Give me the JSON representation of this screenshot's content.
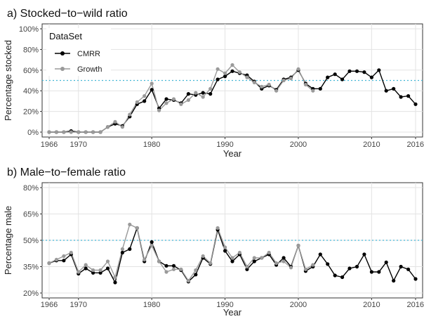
{
  "chart_data": [
    {
      "type": "line",
      "title": "a) Stocked−to−wild ratio",
      "xlabel": "Year",
      "ylabel": "Percentage stocked",
      "xlim": [
        1966,
        2016
      ],
      "ylim": [
        0,
        100
      ],
      "x_ticks": [
        "1966",
        "1970",
        "1980",
        "1990",
        "2000",
        "2010",
        "2016"
      ],
      "y_ticks": [
        "0%",
        "20%",
        "40%",
        "60%",
        "80%",
        "100%"
      ],
      "reference_line": 50,
      "grid": true,
      "legend": {
        "title": "DataSet",
        "position": "top-left",
        "entries": [
          "CMRR",
          "Growth"
        ]
      },
      "series": [
        {
          "name": "CMRR",
          "color": "#000000",
          "points": [
            [
              1966,
              0
            ],
            [
              1967,
              0
            ],
            [
              1968,
              0
            ],
            [
              1969,
              1
            ],
            [
              1970,
              0
            ],
            [
              1971,
              0
            ],
            [
              1972,
              0
            ],
            [
              1973,
              0
            ],
            [
              1974,
              5
            ],
            [
              1975,
              8
            ],
            [
              1976,
              6
            ],
            [
              1977,
              15
            ],
            [
              1978,
              27
            ],
            [
              1979,
              30
            ],
            [
              1980,
              41
            ],
            [
              1981,
              23
            ],
            [
              1982,
              32
            ],
            [
              1983,
              31
            ],
            [
              1984,
              28
            ],
            [
              1985,
              37
            ],
            [
              1986,
              36
            ],
            [
              1987,
              38
            ],
            [
              1988,
              37
            ],
            [
              1989,
              51
            ],
            [
              1990,
              54
            ],
            [
              1991,
              59
            ],
            [
              1992,
              57
            ],
            [
              1993,
              55
            ],
            [
              1994,
              49
            ],
            [
              1995,
              42
            ],
            [
              1996,
              45
            ],
            [
              1997,
              41
            ],
            [
              1998,
              51
            ],
            [
              1999,
              53
            ],
            [
              2000,
              60
            ],
            [
              2001,
              47
            ],
            [
              2002,
              42
            ],
            [
              2003,
              42
            ],
            [
              2004,
              53
            ],
            [
              2005,
              56
            ],
            [
              2006,
              51
            ],
            [
              2007,
              59
            ],
            [
              2008,
              59
            ],
            [
              2009,
              58
            ],
            [
              2010,
              53
            ],
            [
              2011,
              60
            ],
            [
              2012,
              40
            ],
            [
              2013,
              42
            ],
            [
              2014,
              34
            ],
            [
              2015,
              35
            ],
            [
              2016,
              27
            ]
          ]
        },
        {
          "name": "Growth",
          "color": "#9a9a9a",
          "points": [
            [
              1966,
              0
            ],
            [
              1967,
              0
            ],
            [
              1968,
              0
            ],
            [
              1969,
              0
            ],
            [
              1970,
              0
            ],
            [
              1971,
              0
            ],
            [
              1972,
              0
            ],
            [
              1973,
              0
            ],
            [
              1974,
              5
            ],
            [
              1975,
              10
            ],
            [
              1976,
              5
            ],
            [
              1977,
              17
            ],
            [
              1978,
              29
            ],
            [
              1979,
              35
            ],
            [
              1980,
              47
            ],
            [
              1981,
              21
            ],
            [
              1982,
              28
            ],
            [
              1983,
              32
            ],
            [
              1984,
              27
            ],
            [
              1985,
              31
            ],
            [
              1986,
              38
            ],
            [
              1987,
              34
            ],
            [
              1988,
              42
            ],
            [
              1989,
              61
            ],
            [
              1990,
              57
            ],
            [
              1991,
              65
            ],
            [
              1992,
              58
            ],
            [
              1993,
              53
            ],
            [
              1994,
              48
            ],
            [
              1995,
              44
            ],
            [
              1996,
              46
            ],
            [
              1997,
              40
            ],
            [
              1998,
              50
            ],
            [
              1999,
              52
            ],
            [
              2000,
              61
            ],
            [
              2001,
              46
            ],
            [
              2002,
              40
            ]
          ]
        }
      ]
    },
    {
      "type": "line",
      "title": "b) Male−to−female ratio",
      "xlabel": "Year",
      "ylabel": "Percentage male",
      "xlim": [
        1966,
        2016
      ],
      "ylim": [
        20,
        80
      ],
      "x_ticks": [
        "1966",
        "1970",
        "1980",
        "1990",
        "2000",
        "2010",
        "2016"
      ],
      "y_ticks": [
        "20%",
        "35%",
        "50%",
        "65%",
        "80%"
      ],
      "reference_line": 50,
      "grid": true,
      "series": [
        {
          "name": "CMRR",
          "color": "#000000",
          "points": [
            [
              1966,
              37
            ],
            [
              1967,
              38.5
            ],
            [
              1968,
              38.5
            ],
            [
              1969,
              42
            ],
            [
              1970,
              31
            ],
            [
              1971,
              34
            ],
            [
              1972,
              31.5
            ],
            [
              1973,
              31.5
            ],
            [
              1974,
              34
            ],
            [
              1975,
              26
            ],
            [
              1976,
              43
            ],
            [
              1977,
              45
            ],
            [
              1978,
              57
            ],
            [
              1979,
              38
            ],
            [
              1980,
              49
            ],
            [
              1981,
              38
            ],
            [
              1982,
              35.5
            ],
            [
              1983,
              35.5
            ],
            [
              1984,
              33
            ],
            [
              1985,
              26.5
            ],
            [
              1986,
              30.5
            ],
            [
              1987,
              40
            ],
            [
              1988,
              36.5
            ],
            [
              1989,
              56
            ],
            [
              1990,
              44
            ],
            [
              1991,
              38
            ],
            [
              1992,
              42
            ],
            [
              1993,
              33.5
            ],
            [
              1994,
              38
            ],
            [
              1995,
              40
            ],
            [
              1996,
              42
            ],
            [
              1997,
              36
            ],
            [
              1998,
              40
            ],
            [
              1999,
              35
            ],
            [
              2000,
              47
            ],
            [
              2001,
              32.5
            ],
            [
              2002,
              35
            ],
            [
              2003,
              42
            ],
            [
              2004,
              36.5
            ],
            [
              2005,
              30
            ],
            [
              2006,
              29
            ],
            [
              2007,
              34
            ],
            [
              2008,
              35
            ],
            [
              2009,
              42
            ],
            [
              2010,
              32
            ],
            [
              2011,
              32
            ],
            [
              2012,
              37.5
            ],
            [
              2013,
              27
            ],
            [
              2014,
              35
            ],
            [
              2015,
              33.5
            ],
            [
              2016,
              28
            ]
          ]
        },
        {
          "name": "Growth",
          "color": "#9a9a9a",
          "points": [
            [
              1966,
              37
            ],
            [
              1967,
              39
            ],
            [
              1968,
              41
            ],
            [
              1969,
              43
            ],
            [
              1970,
              32
            ],
            [
              1971,
              36
            ],
            [
              1972,
              33
            ],
            [
              1973,
              33
            ],
            [
              1974,
              38
            ],
            [
              1975,
              29
            ],
            [
              1976,
              45
            ],
            [
              1977,
              59
            ],
            [
              1978,
              57
            ],
            [
              1979,
              39
            ],
            [
              1980,
              47
            ],
            [
              1981,
              38
            ],
            [
              1982,
              32
            ],
            [
              1983,
              33.5
            ],
            [
              1984,
              33.5
            ],
            [
              1985,
              27
            ],
            [
              1986,
              33
            ],
            [
              1987,
              41
            ],
            [
              1988,
              37
            ],
            [
              1989,
              57
            ],
            [
              1990,
              46
            ],
            [
              1991,
              40
            ],
            [
              1992,
              43
            ],
            [
              1993,
              35
            ],
            [
              1994,
              40
            ],
            [
              1995,
              40
            ],
            [
              1996,
              43
            ],
            [
              1997,
              37
            ],
            [
              1998,
              38
            ],
            [
              1999,
              34.5
            ],
            [
              2000,
              47
            ],
            [
              2001,
              33.5
            ],
            [
              2002,
              36
            ]
          ]
        }
      ]
    }
  ]
}
